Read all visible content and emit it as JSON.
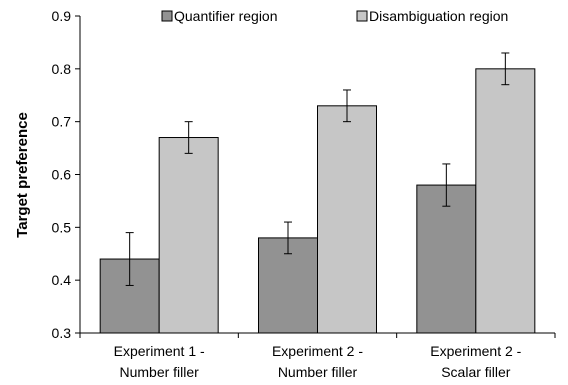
{
  "chart_data": {
    "type": "bar",
    "title": "",
    "xlabel": "",
    "ylabel": "Target preference",
    "ylim": [
      0.3,
      0.9
    ],
    "yticks": [
      "0.3",
      "0.4",
      "0.5",
      "0.6",
      "0.7",
      "0.8",
      "0.9"
    ],
    "ytick_values": [
      0.3,
      0.4,
      0.5,
      0.6,
      0.7,
      0.8,
      0.9
    ],
    "categories": [
      [
        "Experiment 1 -",
        "Number filler"
      ],
      [
        "Experiment 2 -",
        "Number filler"
      ],
      [
        "Experiment 2 -",
        "Scalar filler"
      ]
    ],
    "series": [
      {
        "name": "Quantifier region",
        "color": "#929292",
        "values": [
          0.44,
          0.48,
          0.58
        ],
        "errors": [
          0.05,
          0.03,
          0.04
        ]
      },
      {
        "name": "Disambiguation region",
        "color": "#c6c6c6",
        "values": [
          0.67,
          0.73,
          0.8
        ],
        "errors": [
          0.03,
          0.03,
          0.03
        ]
      }
    ],
    "legend_position": "top",
    "grid": false
  }
}
